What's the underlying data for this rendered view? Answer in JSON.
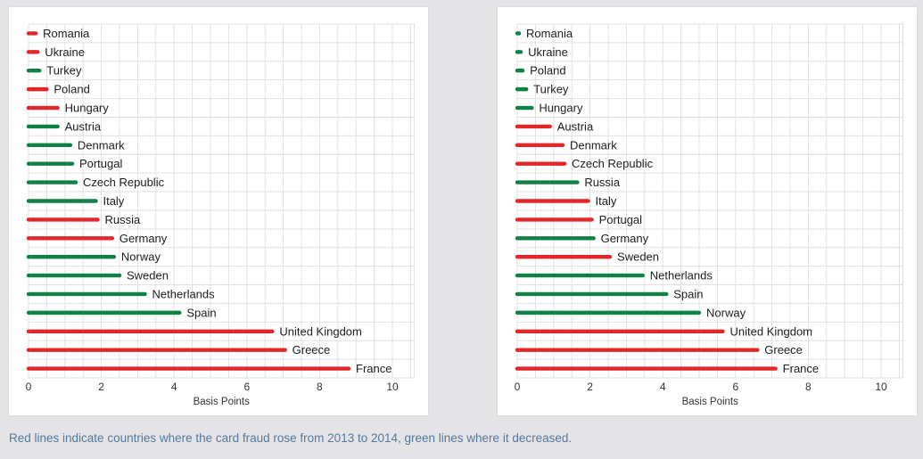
{
  "caption": {
    "text": "Red lines indicate countries where the card fraud rose from 2013 to 2014, green lines where it decreased."
  },
  "colors": {
    "rose": "#e32628",
    "decreased": "#108144",
    "caption_text": "#54789e",
    "grid": "#e0e0e4",
    "page_background": "#e4e4e6",
    "card_background": "#ffffff",
    "label_text": "#202020",
    "tick_text": "#333333"
  },
  "chart_data": [
    {
      "type": "bar",
      "orientation": "horizontal",
      "title": "",
      "xlabel": "Basis Points",
      "ylabel": "",
      "xlim": [
        0,
        10.6
      ],
      "xticks": [
        0,
        2,
        4,
        6,
        8,
        10
      ],
      "x_gridline_step": 0.5,
      "grid": true,
      "legend_position": "none",
      "categories": [
        "Romania",
        "Ukraine",
        "Turkey",
        "Poland",
        "Hungary",
        "Austria",
        "Denmark",
        "Portugal",
        "Czech Republic",
        "Italy",
        "Russia",
        "Germany",
        "Norway",
        "Sweden",
        "Netherlands",
        "Spain",
        "United Kingdom",
        "Greece",
        "France"
      ],
      "values": [
        0.2,
        0.25,
        0.3,
        0.5,
        0.8,
        0.8,
        1.15,
        1.2,
        1.3,
        1.85,
        1.9,
        2.3,
        2.35,
        2.5,
        3.2,
        4.15,
        6.7,
        7.05,
        8.8
      ],
      "trend": [
        "rose",
        "rose",
        "decreased",
        "rose",
        "rose",
        "decreased",
        "decreased",
        "decreased",
        "decreased",
        "decreased",
        "rose",
        "rose",
        "decreased",
        "decreased",
        "decreased",
        "decreased",
        "rose",
        "rose",
        "rose"
      ]
    },
    {
      "type": "bar",
      "orientation": "horizontal",
      "title": "",
      "xlabel": "Basis Points",
      "ylabel": "",
      "xlim": [
        0,
        10.6
      ],
      "xticks": [
        0,
        2,
        4,
        6,
        8,
        10
      ],
      "x_gridline_step": 0.5,
      "grid": true,
      "legend_position": "none",
      "categories": [
        "Romania",
        "Ukraine",
        "Poland",
        "Turkey",
        "Hungary",
        "Austria",
        "Denmark",
        "Czech Republic",
        "Russia",
        "Italy",
        "Portugal",
        "Germany",
        "Sweden",
        "Netherlands",
        "Spain",
        "Norway",
        "United Kingdom",
        "Greece",
        "France"
      ],
      "values": [
        0.05,
        0.1,
        0.15,
        0.25,
        0.4,
        0.9,
        1.25,
        1.3,
        1.65,
        1.95,
        2.05,
        2.1,
        2.55,
        3.45,
        4.1,
        5.0,
        5.65,
        6.6,
        7.1
      ],
      "trend": [
        "decreased",
        "decreased",
        "decreased",
        "decreased",
        "decreased",
        "rose",
        "rose",
        "rose",
        "decreased",
        "rose",
        "rose",
        "decreased",
        "rose",
        "decreased",
        "decreased",
        "decreased",
        "rose",
        "rose",
        "rose"
      ]
    }
  ]
}
